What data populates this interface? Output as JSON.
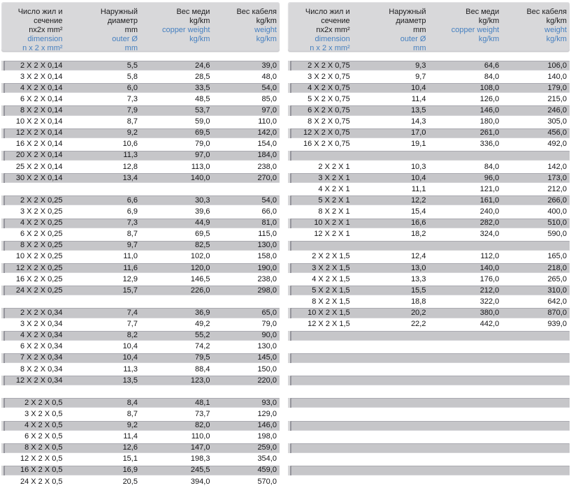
{
  "colors": {
    "accent_blue": "#4680c0",
    "row_gray": "#c6c6c9",
    "header_gray": "#d8d8da",
    "text": "#141416"
  },
  "header_columns": [
    {
      "key": "dimension",
      "ru": [
        "Число жил и",
        "сечение",
        "nx2x mm²"
      ],
      "en": [
        "dimension",
        "n x 2 x mm²"
      ]
    },
    {
      "key": "outer-diameter",
      "ru": [
        "Наружный",
        "диаметр",
        "mm"
      ],
      "en": [
        "outer Ø",
        "mm"
      ]
    },
    {
      "key": "copper-weight",
      "ru": [
        "Вес меди",
        "kg/km"
      ],
      "en": [
        "copper weight",
        "kg/km"
      ]
    },
    {
      "key": "cable-weight",
      "ru": [
        "Вес кабеля",
        "kg/km"
      ],
      "en": [
        "weight",
        "kg/km"
      ]
    }
  ],
  "tables": [
    {
      "name": "left",
      "rows": [
        [
          "2 X 2 X 0,14",
          "5,5",
          "24,6",
          "39,0"
        ],
        [
          "3 X 2 X 0,14",
          "5,8",
          "28,5",
          "48,0"
        ],
        [
          "4 X 2 X 0,14",
          "6,0",
          "33,5",
          "54,0"
        ],
        [
          "6 X 2 X 0,14",
          "7,3",
          "48,5",
          "85,0"
        ],
        [
          "8 X 2 X 0,14",
          "7,9",
          "53,7",
          "97,0"
        ],
        [
          "10 X 2 X 0,14",
          "8,7",
          "59,0",
          "110,0"
        ],
        [
          "12 X 2 X 0,14",
          "9,2",
          "69,5",
          "142,0"
        ],
        [
          "16 X 2 X 0,14",
          "10,6",
          "79,0",
          "154,0"
        ],
        [
          "20 X 2 X 0,14",
          "11,3",
          "97,0",
          "184,0"
        ],
        [
          "25 X 2 X 0,14",
          "12,8",
          "113,0",
          "238,0"
        ],
        [
          "30 X 2 X 0,14",
          "13,4",
          "140,0",
          "270,0"
        ],
        [],
        [
          "2 X 2 X 0,25",
          "6,6",
          "30,3",
          "54,0"
        ],
        [
          "3 X 2 X 0,25",
          "6,9",
          "39,6",
          "66,0"
        ],
        [
          "4 X 2 X 0,25",
          "7,3",
          "44,9",
          "81,0"
        ],
        [
          "6 X 2 X 0,25",
          "8,7",
          "69,5",
          "115,0"
        ],
        [
          "8 X 2 X 0,25",
          "9,7",
          "82,5",
          "130,0"
        ],
        [
          "10 X 2 X 0,25",
          "11,0",
          "102,0",
          "158,0"
        ],
        [
          "12 X 2 X 0,25",
          "11,6",
          "120,0",
          "190,0"
        ],
        [
          "16 X 2 X 0,25",
          "12,9",
          "146,5",
          "238,0"
        ],
        [
          "24 X 2 X 0,25",
          "15,7",
          "226,0",
          "298,0"
        ],
        [],
        [
          "2 X 2 X 0,34",
          "7,4",
          "36,9",
          "65,0"
        ],
        [
          "3 X 2 X 0,34",
          "7,7",
          "49,2",
          "79,0"
        ],
        [
          "4 X 2 X 0,34",
          "8,2",
          "55,2",
          "90,0"
        ],
        [
          "6 X 2 X 0,34",
          "10,4",
          "74,2",
          "130,0"
        ],
        [
          "7 X 2 X 0,34",
          "10,4",
          "79,5",
          "145,0"
        ],
        [
          "8 X 2 X 0,34",
          "11,3",
          "88,4",
          "150,0"
        ],
        [
          "12 X 2 X 0,34",
          "13,5",
          "123,0",
          "220,0"
        ],
        [],
        [
          "2 X 2 X 0,5",
          "8,4",
          "48,1",
          "93,0"
        ],
        [
          "3 X 2 X 0,5",
          "8,7",
          "73,7",
          "129,0"
        ],
        [
          "4 X 2 X 0,5",
          "9,2",
          "82,0",
          "146,0"
        ],
        [
          "6 X 2 X 0,5",
          "11,4",
          "110,0",
          "198,0"
        ],
        [
          "8 X 2 X 0,5",
          "12,6",
          "147,0",
          "259,0"
        ],
        [
          "12 X 2 X 0,5",
          "15,1",
          "198,3",
          "354,0"
        ],
        [
          "16 X 2 X 0,5",
          "16,9",
          "245,5",
          "459,0"
        ],
        [
          "24 X 2 X 0,5",
          "20,5",
          "394,0",
          "570,0"
        ]
      ]
    },
    {
      "name": "right",
      "rows": [
        [
          "2 X 2 X 0,75",
          "9,3",
          "64,6",
          "106,0"
        ],
        [
          "3 X 2 X 0,75",
          "9,7",
          "84,0",
          "140,0"
        ],
        [
          "4 X 2 X 0,75",
          "10,4",
          "108,0",
          "179,0"
        ],
        [
          "5 X 2 X 0,75",
          "11,4",
          "126,0",
          "215,0"
        ],
        [
          "6 X 2 X 0,75",
          "13,5",
          "146,0",
          "246,0"
        ],
        [
          "8 X 2 X 0,75",
          "14,3",
          "180,0",
          "305,0"
        ],
        [
          "12 X 2 X 0,75",
          "17,0",
          "261,0",
          "456,0"
        ],
        [
          "16 X 2 X 0,75",
          "19,1",
          "336,0",
          "492,0"
        ],
        [],
        [
          "2 X 2 X 1",
          "10,3",
          "84,0",
          "142,0"
        ],
        [
          "3 X 2 X 1",
          "10,4",
          "96,0",
          "173,0"
        ],
        [
          "4 X 2 X 1",
          "11,1",
          "121,0",
          "212,0"
        ],
        [
          "5 X 2 X 1",
          "12,2",
          "161,0",
          "266,0"
        ],
        [
          "8 X 2 X 1",
          "15,4",
          "240,0",
          "400,0"
        ],
        [
          "10 X 2 X 1",
          "16,6",
          "282,0",
          "510,0"
        ],
        [
          "12 X 2 X 1",
          "18,2",
          "324,0",
          "590,0"
        ],
        [],
        [
          "2 X 2 X 1,5",
          "12,4",
          "112,0",
          "165,0"
        ],
        [
          "3 X 2 X 1,5",
          "13,0",
          "140,0",
          "218,0"
        ],
        [
          "4 X 2 X 1,5",
          "13,3",
          "176,0",
          "265,0"
        ],
        [
          "5 X 2 X 1,5",
          "15,5",
          "212,0",
          "310,0"
        ],
        [
          "8 X 2 X 1,5",
          "18,8",
          "322,0",
          "642,0"
        ],
        [
          "10 X 2 X 1,5",
          "20,2",
          "380,0",
          "870,0"
        ],
        [
          "12 X 2 X 1,5",
          "22,2",
          "442,0",
          "939,0"
        ],
        [],
        [],
        [],
        [],
        [],
        [],
        [],
        [],
        [],
        [],
        [],
        [],
        [],
        []
      ]
    }
  ]
}
